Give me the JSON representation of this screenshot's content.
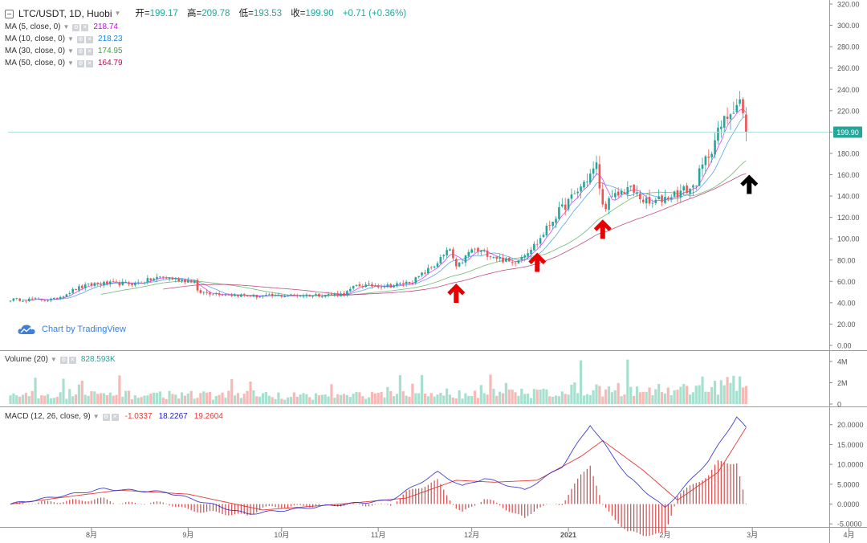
{
  "header": {
    "symbol": "LTC/USDT, 1D, Huobi",
    "open_label": "开=",
    "open": "199.17",
    "high_label": "高=",
    "high": "209.78",
    "low_label": "低=",
    "low": "193.53",
    "close_label": "收=",
    "close": "199.90",
    "change": "+0.71 (+0.36%)"
  },
  "indicators": {
    "ma5": {
      "label": "MA (5, close, 0)",
      "value": "218.74",
      "color": "#d500f9"
    },
    "ma10": {
      "label": "MA (10, close, 0)",
      "value": "218.23",
      "color": "#1e88e5"
    },
    "ma30": {
      "label": "MA (30, close, 0)",
      "value": "174.95",
      "color": "#43a047"
    },
    "ma50": {
      "label": "MA (50, close, 0)",
      "value": "164.79",
      "color": "#ad1457"
    }
  },
  "volume_pane": {
    "label": "Volume (20)",
    "value": "828.593K",
    "value_color": "#26a69a"
  },
  "macd_pane": {
    "label": "MACD (12, 26, close, 9)",
    "hist": "-1.0337",
    "hist_color": "#e53935",
    "macd": "18.2267",
    "macd_color": "#1e1ec8",
    "signal": "19.2604",
    "signal_color": "#e53935"
  },
  "watermark": "Chart by TradingView",
  "colors": {
    "up": "#26a69a",
    "down": "#ef5350",
    "vol_up": "#a8e0cf",
    "vol_down": "#f7b9b6",
    "accent": "#26a69a"
  },
  "chart_data": [
    {
      "type": "candlestick",
      "title": "LTC/USDT, 1D, Huobi",
      "x_range": [
        "2020-07-06",
        "2021-04-25"
      ],
      "x_ticks": [
        "8月",
        "9月",
        "10月",
        "11月",
        "12月",
        "2021",
        "2月",
        "3月",
        "4月"
      ],
      "ylim": [
        0,
        320
      ],
      "y_ticks": [
        "0.00",
        "20.00",
        "40.00",
        "60.00",
        "80.00",
        "100.00",
        "120.00",
        "140.00",
        "160.00",
        "180.00",
        "200.00",
        "220.00",
        "240.00",
        "260.00",
        "280.00",
        "300.00",
        "320.00"
      ],
      "last_price": "199.90",
      "close_path": [
        [
          "2020-07-06",
          43
        ],
        [
          "2020-07-20",
          43
        ],
        [
          "2020-07-27",
          53
        ],
        [
          "2020-08-02",
          58
        ],
        [
          "2020-08-15",
          58
        ],
        [
          "2020-08-23",
          64
        ],
        [
          "2020-09-03",
          60
        ],
        [
          "2020-09-04",
          50
        ],
        [
          "2020-09-23",
          46
        ],
        [
          "2020-10-21",
          48
        ],
        [
          "2020-10-25",
          56
        ],
        [
          "2020-11-05",
          56
        ],
        [
          "2020-11-12",
          60
        ],
        [
          "2020-11-19",
          75
        ],
        [
          "2020-11-24",
          90
        ],
        [
          "2020-11-26",
          72
        ],
        [
          "2020-12-01",
          90
        ],
        [
          "2020-12-06",
          86
        ],
        [
          "2020-12-14",
          77
        ],
        [
          "2020-12-22",
          96
        ],
        [
          "2020-12-24",
          105
        ],
        [
          "2020-12-28",
          122
        ],
        [
          "2021-01-03",
          141
        ],
        [
          "2021-01-10",
          168
        ],
        [
          "2021-01-12",
          130
        ],
        [
          "2021-01-20",
          148
        ],
        [
          "2021-01-27",
          132
        ],
        [
          "2021-02-02",
          140
        ],
        [
          "2021-02-10",
          148
        ],
        [
          "2021-02-19",
          205
        ],
        [
          "2021-02-23",
          225
        ],
        [
          "2021-02-25",
          230
        ],
        [
          "2021-02-27",
          200
        ]
      ],
      "arrows": [
        {
          "x": "2020-11-26",
          "y": 58,
          "color": "red"
        },
        {
          "x": "2020-12-22",
          "y": 87,
          "color": "red"
        },
        {
          "x": "2021-01-12",
          "y": 118,
          "color": "red"
        },
        {
          "x": "2021-02-28",
          "y": 160,
          "color": "black"
        }
      ]
    },
    {
      "type": "bar",
      "title": "Volume (20)",
      "ylim": [
        0,
        4800000
      ],
      "y_ticks": [
        "0",
        "2M",
        "4M"
      ]
    },
    {
      "type": "line",
      "title": "MACD (12, 26, close, 9)",
      "ylim": [
        -5,
        20
      ],
      "y_ticks": [
        "-5.0000",
        "0.0000",
        "5.0000",
        "10.0000",
        "15.0000",
        "20.0000"
      ],
      "series": [
        {
          "name": "MACD",
          "points": [
            [
              "2020-07-06",
              0
            ],
            [
              "2020-08-05",
              3.8
            ],
            [
              "2020-08-25",
              3
            ],
            [
              "2020-09-20",
              -2.5
            ],
            [
              "2020-10-15",
              -0.5
            ],
            [
              "2020-11-05",
              1
            ],
            [
              "2020-11-20",
              8
            ],
            [
              "2020-11-28",
              4.5
            ],
            [
              "2020-12-05",
              6.5
            ],
            [
              "2020-12-18",
              3.5
            ],
            [
              "2020-12-30",
              9.5
            ],
            [
              "2021-01-08",
              20
            ],
            [
              "2021-01-20",
              7
            ],
            [
              "2021-02-01",
              -1
            ],
            [
              "2021-02-15",
              11
            ],
            [
              "2021-02-24",
              22
            ],
            [
              "2021-02-28",
              18.2
            ]
          ]
        },
        {
          "name": "Signal",
          "points": [
            [
              "2020-07-06",
              0
            ],
            [
              "2020-08-10",
              3.5
            ],
            [
              "2020-09-01",
              2.5
            ],
            [
              "2020-09-25",
              -1.5
            ],
            [
              "2020-10-20",
              0
            ],
            [
              "2020-11-10",
              1.5
            ],
            [
              "2020-11-26",
              6
            ],
            [
              "2020-12-08",
              5.5
            ],
            [
              "2020-12-22",
              6
            ],
            [
              "2021-01-05",
              12
            ],
            [
              "2021-01-12",
              16
            ],
            [
              "2021-01-25",
              8.5
            ],
            [
              "2021-02-05",
              1
            ],
            [
              "2021-02-18",
              8
            ],
            [
              "2021-02-27",
              19.3
            ]
          ]
        }
      ]
    }
  ]
}
